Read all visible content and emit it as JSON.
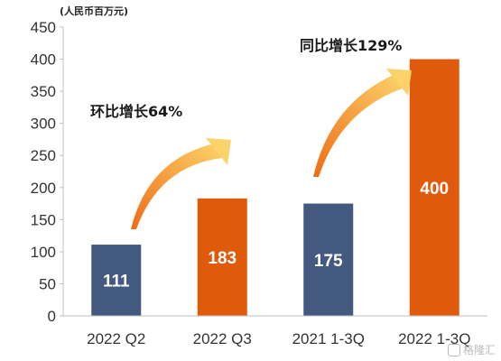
{
  "chart_data": {
    "type": "bar",
    "unit_label": "(人民币百万元)",
    "categories": [
      "2022 Q2",
      "2022 Q3",
      "2021 1-3Q",
      "2022 1-3Q"
    ],
    "values": [
      111,
      183,
      175,
      400
    ],
    "value_labels": [
      "111",
      "183",
      "175",
      "400"
    ],
    "bar_colors": [
      "#44597f",
      "#e05a0c",
      "#44597f",
      "#e05a0c"
    ],
    "ylim": [
      0,
      450
    ],
    "yticks": [
      0,
      50,
      100,
      150,
      200,
      250,
      300,
      350,
      400,
      450
    ],
    "grid": false,
    "annotations": [
      {
        "text": "环比增长64%",
        "from": 0,
        "to": 1
      },
      {
        "text": "同比增长129%",
        "from": 2,
        "to": 3
      }
    ]
  },
  "watermark": "格隆汇",
  "colors": {
    "blue": "#44597f",
    "orange": "#e05a0c",
    "arrow_start": "#ef6c16",
    "arrow_end": "#fbd36a"
  }
}
